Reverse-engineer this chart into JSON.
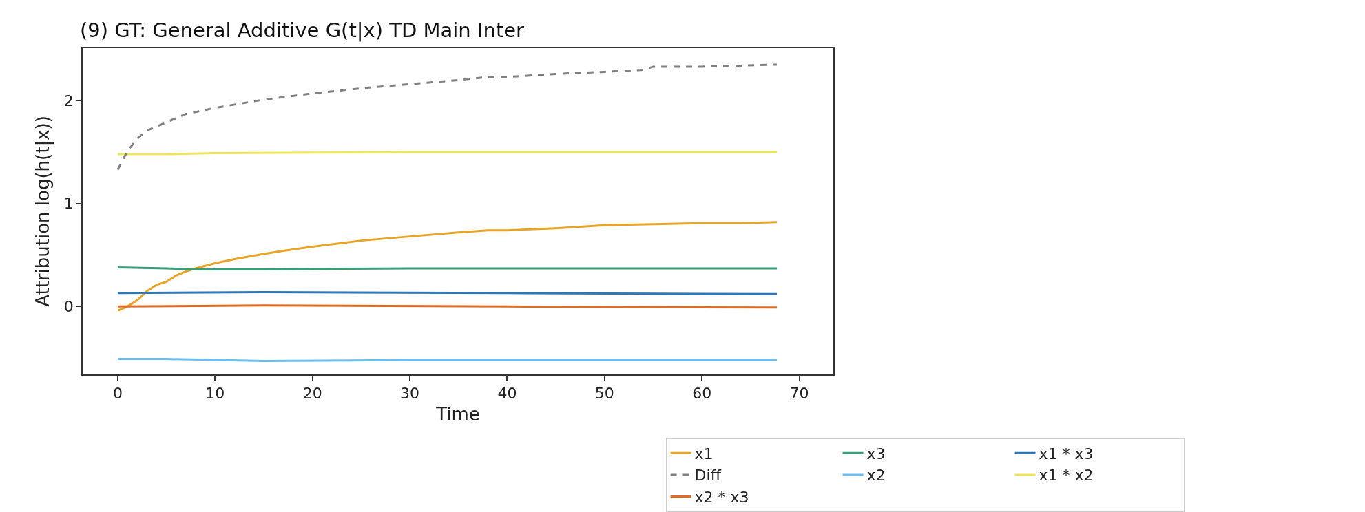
{
  "chart_data": {
    "type": "line",
    "title": "(9) GT: General Additive G(t|x) TD Main Inter",
    "xlabel": "Time",
    "ylabel": "Attribution log(h(t|x))",
    "xlim": [
      -3.6,
      73.5
    ],
    "xticks": [
      0,
      10,
      20,
      30,
      40,
      50,
      60,
      70
    ],
    "ylim": [
      -0.66,
      2.51
    ],
    "yticks": [
      0,
      1,
      2
    ],
    "grid": false,
    "legend": "bottom right",
    "marker": "none",
    "line_style": "solid",
    "series": [
      {
        "name": "x1",
        "color": "#e8a427",
        "x": [
          0,
          1,
          2,
          3,
          4,
          5,
          6,
          7,
          8,
          10,
          12,
          15,
          17,
          20,
          25,
          30,
          35,
          38,
          40,
          45,
          50,
          55,
          60,
          64,
          67.7
        ],
        "values": [
          -0.04,
          0,
          0.06,
          0.15,
          0.21,
          0.24,
          0.3,
          0.34,
          0.37,
          0.42,
          0.46,
          0.51,
          0.54,
          0.58,
          0.64,
          0.68,
          0.72,
          0.74,
          0.74,
          0.76,
          0.79,
          0.8,
          0.81,
          0.81,
          0.82
        ]
      },
      {
        "name": "x2",
        "color": "#6cbef0",
        "x": [
          0,
          5,
          10,
          15,
          30,
          50,
          67.7
        ],
        "values": [
          -0.51,
          -0.51,
          -0.52,
          -0.53,
          -0.52,
          -0.52,
          -0.52
        ]
      },
      {
        "name": "x3",
        "color": "#3a9e77",
        "x": [
          0,
          5,
          8,
          15,
          30,
          50,
          67.7
        ],
        "values": [
          0.38,
          0.37,
          0.36,
          0.36,
          0.37,
          0.37,
          0.37
        ]
      },
      {
        "name": "x1 * x2",
        "color": "#f0e55a",
        "x": [
          0,
          5,
          10,
          30,
          45,
          67.7
        ],
        "values": [
          1.48,
          1.48,
          1.49,
          1.5,
          1.5,
          1.5
        ]
      },
      {
        "name": "x1 * x3",
        "color": "#2f78b8",
        "x": [
          0,
          15,
          40,
          67.7
        ],
        "values": [
          0.13,
          0.14,
          0.13,
          0.12
        ]
      },
      {
        "name": "x2 * x3",
        "color": "#e06c24",
        "x": [
          0,
          15,
          40,
          67.7
        ],
        "values": [
          0,
          0.01,
          0,
          -0.01
        ]
      },
      {
        "name": "Diff",
        "color": "#808080",
        "line_style": "dashed",
        "x": [
          0,
          1,
          2,
          3,
          5,
          7,
          10,
          15,
          20,
          25,
          30,
          35,
          38,
          40,
          45,
          50,
          54,
          55,
          60,
          64,
          67.7
        ],
        "values": [
          1.33,
          1.51,
          1.63,
          1.71,
          1.79,
          1.87,
          1.93,
          2.01,
          2.07,
          2.12,
          2.16,
          2.2,
          2.23,
          2.23,
          2.26,
          2.28,
          2.3,
          2.33,
          2.33,
          2.34,
          2.35
        ]
      }
    ]
  }
}
